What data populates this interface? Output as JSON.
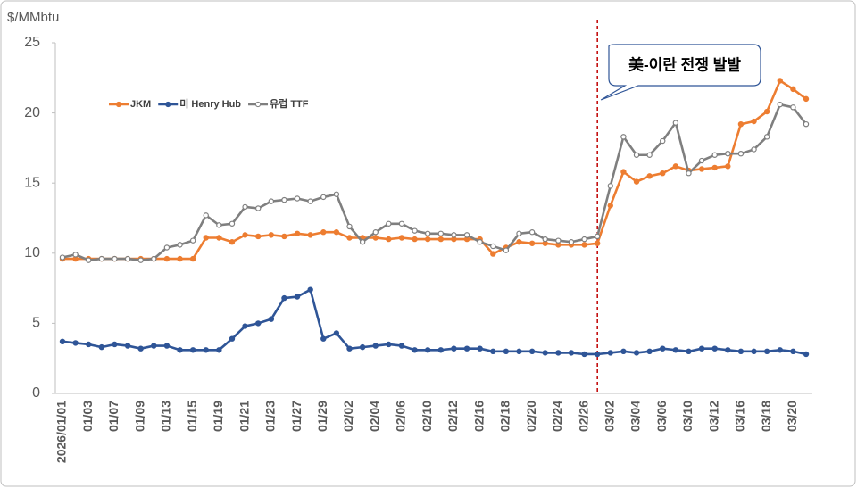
{
  "chart_data": {
    "type": "line",
    "y_unit": "$/MMbtu",
    "categories": [
      "2026/01/01",
      null,
      "01/03",
      null,
      "01/07",
      null,
      "01/09",
      null,
      "01/13",
      null,
      "01/15",
      null,
      "01/19",
      null,
      "01/21",
      null,
      "01/23",
      null,
      "01/27",
      null,
      "01/29",
      null,
      "02/02",
      null,
      "02/04",
      null,
      "02/06",
      null,
      "02/10",
      null,
      "02/12",
      null,
      "02/16",
      null,
      "02/18",
      null,
      "02/20",
      null,
      "02/24",
      null,
      "02/26",
      null,
      "03/02",
      null,
      "03/04",
      null,
      "03/06",
      null,
      "03/10",
      null,
      "03/12",
      null,
      "03/16",
      null,
      "03/18",
      null,
      "03/20",
      null
    ],
    "series": [
      {
        "name": "JKM",
        "color": "#ed7d31",
        "values": [
          9.6,
          9.6,
          9.6,
          9.6,
          9.6,
          9.6,
          9.6,
          9.6,
          9.6,
          9.6,
          9.6,
          11.1,
          11.1,
          10.8,
          11.3,
          11.2,
          11.3,
          11.2,
          11.4,
          11.3,
          11.5,
          11.5,
          11.1,
          11.1,
          11.1,
          11.0,
          11.1,
          11.0,
          11.0,
          11.0,
          11.0,
          11.0,
          11.0,
          9.95,
          10.4,
          10.8,
          10.7,
          10.7,
          10.6,
          10.6,
          10.6,
          10.7,
          13.4,
          15.8,
          15.1,
          15.5,
          15.7,
          16.2,
          15.9,
          16.0,
          16.1,
          16.2,
          19.2,
          19.4,
          20.1,
          22.3,
          21.7,
          21.0
        ]
      },
      {
        "name": "미 Henry Hub",
        "color": "#2f5597",
        "values": [
          3.7,
          3.6,
          3.5,
          3.3,
          3.5,
          3.4,
          3.2,
          3.4,
          3.4,
          3.1,
          3.1,
          3.1,
          3.1,
          3.9,
          4.8,
          5.0,
          5.3,
          6.8,
          6.9,
          7.4,
          3.9,
          4.3,
          3.2,
          3.3,
          3.4,
          3.5,
          3.4,
          3.1,
          3.1,
          3.1,
          3.2,
          3.2,
          3.2,
          3.0,
          3.0,
          3.0,
          3.0,
          2.9,
          2.9,
          2.9,
          2.8,
          2.8,
          2.9,
          3.0,
          2.9,
          3.0,
          3.2,
          3.1,
          3.0,
          3.2,
          3.2,
          3.1,
          3.0,
          3.0,
          3.0,
          3.1,
          3.0,
          2.8
        ]
      },
      {
        "name": "유럽 TTF",
        "color": "#7f7f7f",
        "values": [
          9.7,
          9.9,
          9.5,
          9.6,
          9.6,
          9.6,
          9.5,
          9.6,
          10.4,
          10.6,
          10.9,
          12.7,
          12.0,
          12.1,
          13.3,
          13.2,
          13.7,
          13.8,
          13.9,
          13.7,
          14.0,
          14.2,
          11.9,
          10.8,
          11.5,
          12.1,
          12.1,
          11.6,
          11.4,
          11.4,
          11.3,
          11.3,
          10.8,
          10.5,
          10.2,
          11.4,
          11.5,
          11.0,
          10.9,
          10.8,
          11.0,
          11.2,
          14.8,
          18.3,
          17.0,
          17.0,
          18.0,
          19.3,
          15.7,
          16.6,
          17.0,
          17.1,
          17.1,
          17.4,
          18.3,
          20.6,
          20.4,
          19.2
        ]
      }
    ],
    "ylim": [
      0,
      25
    ],
    "yticks": [
      0,
      5,
      10,
      15,
      20,
      25
    ],
    "grid": false,
    "annotation": {
      "text": "美-이란 전쟁 발발",
      "before": "03/02",
      "color": "#c00000"
    }
  }
}
